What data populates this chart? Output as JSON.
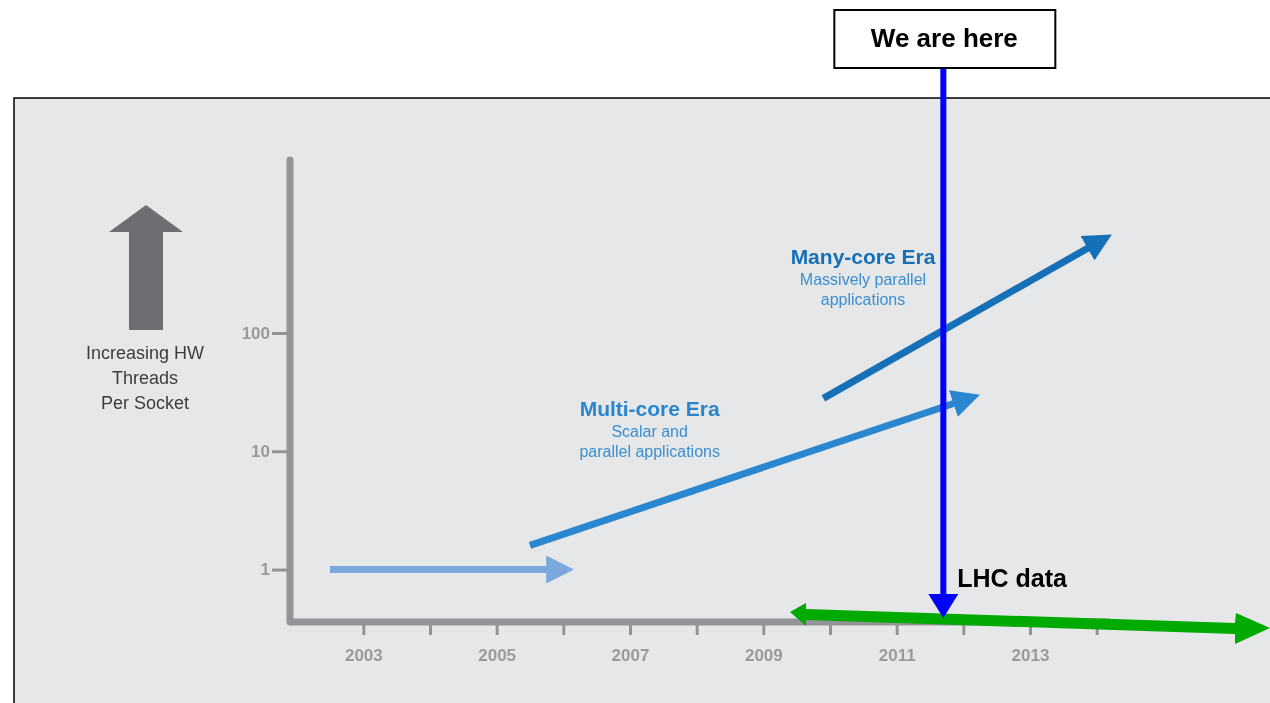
{
  "chart_data": {
    "type": "line",
    "ylabel": "Increasing HW\nThreads\nPer Socket",
    "log": true,
    "xlim": [
      2001.9,
      2014.2
    ],
    "ylim": [
      0.36,
      2900
    ],
    "xticks": [
      2003,
      {
        "value": 2004,
        "label": null
      },
      2005,
      {
        "value": 2006,
        "label": null
      },
      2007,
      {
        "value": 2008,
        "label": null
      },
      2009,
      {
        "value": 2010,
        "label": null
      },
      2011,
      {
        "value": 2012,
        "label": null
      },
      2013,
      {
        "value": 2014,
        "label": null
      }
    ],
    "yticks": [
      1,
      10,
      100
    ],
    "series": [
      {
        "color": "#7ba8dc",
        "x": [
          2002.5,
          2005.9
        ],
        "values": [
          1,
          1
        ]
      },
      {
        "name": "Multi-core Era",
        "color": "#2a86cf",
        "x": [
          2005.5,
          2012.0
        ],
        "values": [
          1.6,
          27
        ]
      },
      {
        "name": "Many-core Era",
        "color": "#1670b8",
        "x": [
          2009.9,
          2014.0
        ],
        "values": [
          28,
          575
        ]
      }
    ],
    "ref_lines": [
      {
        "axis": "x",
        "value": 2011.7,
        "label": "We are here",
        "color": "#0000ff"
      }
    ],
    "annotations": [
      "Scalar and\nparallel applications",
      "Massively parallel\napplications",
      "LHC data"
    ]
  }
}
